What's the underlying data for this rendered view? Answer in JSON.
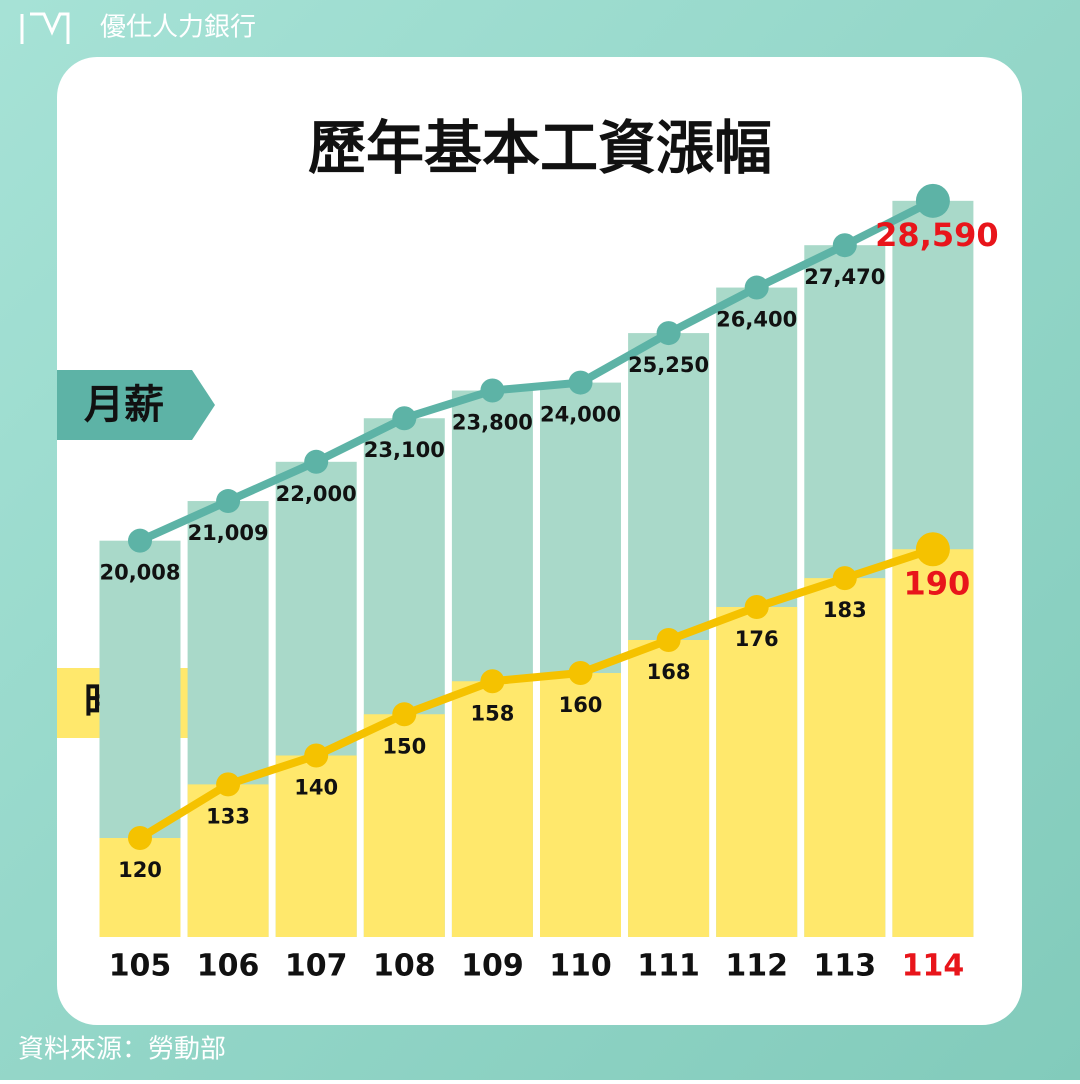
{
  "brand": "優仕人力銀行",
  "source": "資料來源：勞動部",
  "chart_data": {
    "type": "bar-line",
    "title": "歷年基本工資漲幅",
    "categories": [
      "105",
      "106",
      "107",
      "108",
      "109",
      "110",
      "111",
      "112",
      "113",
      "114"
    ],
    "highlight_color": "#e8151b",
    "ylim": [
      10000,
      30000
    ],
    "y2lim": [
      96,
      288
    ],
    "series": [
      {
        "name": "月薪",
        "color": "#5db3a6",
        "bar_color": "#a9d9c9",
        "values": [
          20008,
          21009,
          22000,
          23100,
          23800,
          24000,
          25250,
          26400,
          27470,
          28590
        ],
        "value_labels": [
          "20,008",
          "21,009",
          "22,000",
          "23,100",
          "23,800",
          "24,000",
          "25,250",
          "26,400",
          "27,470",
          "28,590"
        ]
      },
      {
        "name": "時薪",
        "color": "#f5c200",
        "bar_color": "#ffe86c",
        "axis": "y2",
        "values": [
          120,
          133,
          140,
          150,
          158,
          160,
          168,
          176,
          183,
          190
        ]
      }
    ]
  }
}
